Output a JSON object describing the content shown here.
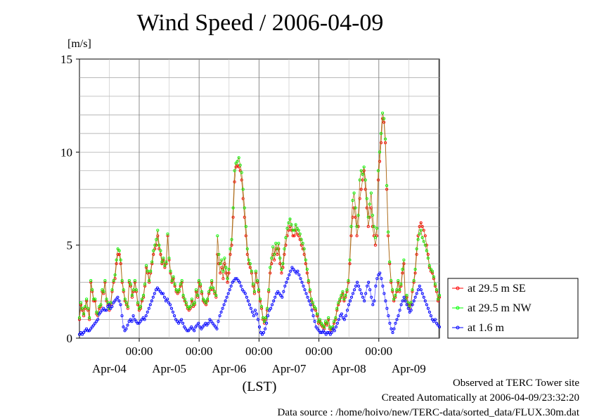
{
  "title": "Wind Speed / 2006-04-09",
  "unit_label": "[m/s]",
  "footer": {
    "line1": "Observed at TERC Tower site",
    "line2": "Created Automatically at 2006-04-09/23:32:20",
    "line3": "Data source : /home/hoivo/new/TERC-data/sorted_data/FLUX.30m.dat"
  },
  "chart_data": {
    "type": "line",
    "xlabel": "(LST)",
    "ylabel": "[m/s]",
    "ylim": [
      0,
      15
    ],
    "yticks": [
      "0",
      "5",
      "10",
      "15"
    ],
    "xticks_time": [
      "00:00",
      "00:00",
      "00:00",
      "00:00",
      "00:00"
    ],
    "xticks_date": [
      "Apr-04",
      "Apr-05",
      "Apr-06",
      "Apr-07",
      "Apr-08",
      "Apr-09"
    ],
    "grid": true,
    "legend_position": "right",
    "colors": {
      "se": "#ff0000",
      "nw": "#00ff00",
      "low": "#0000ff",
      "line": "#b07020"
    },
    "series": [
      {
        "name": "at 29.5 m SE",
        "color": "#ff0000",
        "values": [
          1.0,
          1.8,
          1.5,
          1.2,
          1.6,
          2.0,
          1.5,
          1.0,
          3.0,
          2.5,
          2.0,
          2.0,
          1.3,
          1.2,
          1.6,
          1.7,
          2.5,
          2.4,
          3.0,
          2.0,
          1.8,
          1.5,
          1.8,
          2.5,
          3.0,
          3.2,
          4.0,
          4.5,
          4.5,
          4.0,
          3.0,
          2.5,
          2.0,
          1.8,
          1.6,
          3.0,
          2.8,
          2.2,
          2.5,
          3.0,
          2.5,
          1.8,
          1.5,
          1.6,
          2.0,
          2.2,
          2.8,
          3.8,
          3.5,
          3.0,
          3.5,
          4.0,
          4.5,
          4.8,
          5.0,
          5.5,
          4.8,
          4.5,
          4.0,
          4.2,
          3.8,
          4.0,
          5.5,
          4.2,
          3.5,
          3.0,
          3.2,
          2.8,
          2.5,
          2.4,
          2.5,
          2.8,
          3.0,
          2.2,
          2.0,
          1.8,
          1.6,
          1.5,
          1.6,
          2.0,
          1.7,
          1.8,
          2.5,
          2.2,
          3.0,
          2.8,
          2.4,
          2.0,
          1.9,
          1.8,
          2.0,
          2.4,
          2.6,
          3.0,
          2.6,
          2.4,
          2.2,
          4.5,
          4.0,
          3.5,
          3.8,
          3.2,
          4.0,
          3.5,
          3.0,
          3.5,
          4.5,
          5.0,
          6.5,
          8.4,
          9.2,
          9.3,
          9.2,
          9.0,
          8.5,
          7.5,
          6.5,
          5.5,
          4.5,
          4.0,
          3.8,
          3.5,
          2.8,
          2.4,
          3.5,
          3.0,
          2.5,
          2.0,
          1.6,
          1.0,
          0.8,
          1.0,
          1.5,
          2.5,
          3.5,
          4.0,
          4.5,
          4.2,
          4.8,
          4.5,
          4.8,
          4.0,
          3.5,
          3.8,
          4.5,
          5.0,
          5.5,
          5.8,
          6.0,
          5.8,
          5.5,
          5.5,
          5.8,
          5.6,
          5.5,
          5.3,
          5.0,
          4.8,
          4.5,
          4.0,
          3.5,
          3.0,
          2.5,
          2.0,
          1.8,
          1.6,
          1.5,
          1.2,
          0.8,
          0.9,
          0.7,
          0.6,
          0.5,
          0.8,
          0.7,
          1.0,
          0.5,
          0.4,
          0.5,
          0.8,
          1.0,
          1.5,
          1.8,
          2.0,
          2.2,
          2.4,
          2.0,
          2.2,
          2.5,
          3.0,
          4.0,
          5.5,
          6.5,
          7.0,
          6.5,
          5.5,
          6.0,
          7.5,
          8.0,
          8.5,
          9.0,
          8.0,
          7.0,
          6.0,
          6.5,
          7.0,
          6.0,
          5.5,
          5.0,
          5.5,
          8.5,
          9.5,
          10.5,
          11.8,
          11.6,
          10.5,
          8.0,
          5.5,
          4.0,
          3.0,
          2.5,
          2.0,
          2.2,
          2.5,
          3.0,
          2.5,
          2.8,
          3.5,
          4.0,
          2.0,
          2.2,
          1.8,
          1.6,
          1.8,
          2.5,
          3.0,
          3.5,
          4.5,
          5.5,
          6.0,
          6.2,
          6.0,
          5.8,
          5.5,
          5.0,
          4.5,
          3.8,
          3.6,
          3.5,
          3.2,
          2.8,
          2.5,
          2.0,
          2.2
        ]
      },
      {
        "name": "at 29.5 m NW",
        "color": "#00ff00",
        "values": [
          1.1,
          1.9,
          1.6,
          1.3,
          1.7,
          2.1,
          1.6,
          1.1,
          3.1,
          2.6,
          2.1,
          2.1,
          1.4,
          1.3,
          1.7,
          1.8,
          2.6,
          2.5,
          3.1,
          2.1,
          1.9,
          1.6,
          1.9,
          2.6,
          3.1,
          3.4,
          4.2,
          4.8,
          4.7,
          4.2,
          3.1,
          2.6,
          2.1,
          1.9,
          1.7,
          3.1,
          2.9,
          2.3,
          2.6,
          3.1,
          2.6,
          1.9,
          1.6,
          1.7,
          2.1,
          2.3,
          2.9,
          3.9,
          3.6,
          3.1,
          3.6,
          4.1,
          4.7,
          5.0,
          5.3,
          5.8,
          5.0,
          4.7,
          4.1,
          4.3,
          3.9,
          4.1,
          5.6,
          4.3,
          3.6,
          3.1,
          3.3,
          2.9,
          2.6,
          2.5,
          2.6,
          2.9,
          3.1,
          2.3,
          2.1,
          1.9,
          1.7,
          1.6,
          1.7,
          2.1,
          1.8,
          1.9,
          2.6,
          2.3,
          3.1,
          2.9,
          2.5,
          2.1,
          2.0,
          1.9,
          2.1,
          2.5,
          2.7,
          3.1,
          2.7,
          2.5,
          2.3,
          5.5,
          4.5,
          4.0,
          4.2,
          3.6,
          4.3,
          3.8,
          3.2,
          3.7,
          4.8,
          5.3,
          7.0,
          9.0,
          9.4,
          9.5,
          9.7,
          9.3,
          8.9,
          8.0,
          7.0,
          6.0,
          4.8,
          4.2,
          4.0,
          3.6,
          2.9,
          2.5,
          3.6,
          3.1,
          2.6,
          2.1,
          1.7,
          1.1,
          0.9,
          1.1,
          1.6,
          2.6,
          3.8,
          4.3,
          4.9,
          4.5,
          5.1,
          4.8,
          5.1,
          4.3,
          3.7,
          4.0,
          4.8,
          5.4,
          5.9,
          6.2,
          6.4,
          6.1,
          5.8,
          5.8,
          6.1,
          5.9,
          5.8,
          5.6,
          5.3,
          5.1,
          4.8,
          4.2,
          3.7,
          3.1,
          2.6,
          2.1,
          1.9,
          1.7,
          1.6,
          1.3,
          0.9,
          1.0,
          0.8,
          0.7,
          0.6,
          0.9,
          0.8,
          1.1,
          0.6,
          0.5,
          0.6,
          0.9,
          1.1,
          1.6,
          1.9,
          2.1,
          2.3,
          2.5,
          2.1,
          2.3,
          2.6,
          3.1,
          4.2,
          6.0,
          7.4,
          7.8,
          7.0,
          6.0,
          6.6,
          8.5,
          9.0,
          8.8,
          9.2,
          8.5,
          7.5,
          6.5,
          7.2,
          7.8,
          6.6,
          6.0,
          5.4,
          5.9,
          9.0,
          10.0,
          11.0,
          12.1,
          11.8,
          10.7,
          8.2,
          5.7,
          4.1,
          3.1,
          2.6,
          2.1,
          2.3,
          2.6,
          3.1,
          2.6,
          2.9,
          3.7,
          4.2,
          2.1,
          2.3,
          1.9,
          1.7,
          1.9,
          2.6,
          3.1,
          3.7,
          4.8,
          5.3,
          5.6,
          5.8,
          5.4,
          5.2,
          5.0,
          4.7,
          4.3,
          3.9,
          3.7,
          3.6,
          3.3,
          2.9,
          2.6,
          2.1,
          2.3
        ]
      },
      {
        "name": "at 1.6 m",
        "color": "#0000ff",
        "values": [
          0.2,
          0.3,
          0.2,
          0.3,
          0.4,
          0.5,
          0.4,
          0.4,
          0.5,
          0.6,
          0.7,
          0.8,
          0.9,
          1.0,
          1.3,
          1.4,
          1.5,
          1.6,
          1.5,
          1.5,
          1.7,
          1.8,
          1.6,
          1.7,
          1.9,
          2.0,
          2.1,
          2.2,
          2.0,
          1.8,
          1.2,
          0.6,
          0.4,
          0.5,
          0.7,
          0.9,
          1.0,
          0.9,
          1.2,
          1.0,
          0.9,
          0.8,
          0.8,
          0.9,
          1.0,
          1.1,
          1.0,
          1.2,
          1.4,
          1.6,
          1.8,
          2.0,
          2.2,
          2.4,
          2.6,
          2.7,
          2.6,
          2.5,
          2.4,
          2.4,
          2.2,
          2.0,
          2.1,
          1.9,
          1.8,
          1.6,
          1.4,
          1.2,
          1.0,
          0.9,
          0.8,
          0.9,
          1.0,
          0.8,
          0.6,
          0.5,
          0.4,
          0.4,
          0.5,
          0.6,
          0.5,
          0.4,
          0.6,
          0.7,
          0.8,
          0.6,
          0.5,
          0.6,
          0.7,
          0.8,
          0.7,
          0.8,
          1.0,
          0.9,
          0.8,
          0.7,
          0.6,
          0.5,
          0.9,
          1.2,
          1.4,
          1.6,
          1.8,
          2.0,
          2.2,
          2.4,
          2.6,
          2.8,
          3.0,
          3.1,
          3.2,
          3.2,
          3.1,
          3.0,
          2.8,
          2.6,
          2.5,
          2.4,
          2.2,
          2.0,
          1.8,
          1.6,
          1.4,
          1.2,
          1.5,
          1.3,
          1.0,
          0.6,
          0.3,
          0.2,
          0.3,
          0.5,
          0.8,
          1.2,
          1.5,
          1.6,
          1.8,
          2.0,
          2.2,
          2.4,
          2.5,
          2.4,
          2.3,
          2.2,
          2.5,
          2.8,
          3.0,
          3.2,
          3.4,
          3.6,
          3.8,
          3.7,
          3.6,
          3.5,
          3.6,
          3.4,
          3.2,
          3.0,
          2.8,
          2.6,
          2.4,
          2.2,
          2.0,
          1.8,
          1.5,
          1.2,
          0.9,
          0.6,
          0.5,
          0.4,
          0.3,
          0.3,
          0.4,
          0.3,
          0.2,
          0.3,
          0.3,
          0.2,
          0.3,
          0.5,
          0.4,
          0.6,
          0.8,
          1.0,
          1.2,
          1.3,
          1.1,
          1.0,
          1.2,
          1.5,
          1.8,
          2.0,
          2.2,
          2.4,
          2.6,
          2.8,
          3.0,
          2.8,
          2.6,
          2.4,
          2.2,
          2.0,
          2.4,
          2.8,
          3.0,
          2.6,
          2.2,
          1.8,
          2.0,
          2.8,
          3.2,
          3.4,
          3.5,
          3.2,
          2.8,
          2.4,
          2.0,
          1.6,
          1.2,
          0.8,
          0.5,
          0.3,
          0.5,
          0.8,
          1.0,
          1.2,
          1.5,
          1.8,
          2.0,
          2.2,
          2.0,
          1.8,
          1.6,
          1.4,
          1.5,
          1.8,
          2.0,
          2.2,
          2.4,
          2.6,
          2.8,
          2.6,
          2.4,
          2.2,
          2.0,
          1.8,
          1.6,
          1.4,
          1.2,
          1.0,
          0.9,
          1.0,
          0.8,
          0.7,
          0.6
        ]
      }
    ]
  }
}
